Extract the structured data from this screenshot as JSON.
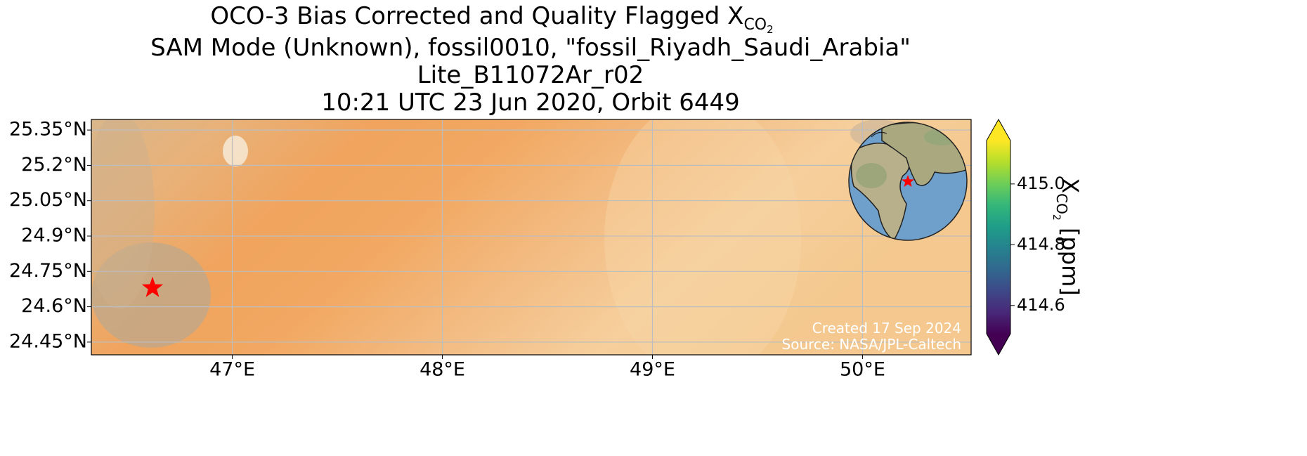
{
  "title": {
    "line1": "OCO-3 Bias Corrected and Quality Flagged X",
    "line1_sub": "CO",
    "line1_sub2": "2",
    "line2": "SAM Mode (Unknown), fossil0010, \"fossil_Riyadh_Saudi_Arabia\"",
    "line3": "Lite_B11072Ar_r02",
    "line4": "10:21 UTC 23 Jun 2020, Orbit 6449"
  },
  "map": {
    "xlim": [
      46.329,
      50.517
    ],
    "ylim": [
      24.396,
      25.395
    ],
    "xticks": [
      {
        "value": 47,
        "label": "47°E"
      },
      {
        "value": 48,
        "label": "48°E"
      },
      {
        "value": 49,
        "label": "49°E"
      },
      {
        "value": 50,
        "label": "50°E"
      }
    ],
    "yticks": [
      {
        "value": 25.35,
        "label": "25.35°N"
      },
      {
        "value": 25.2,
        "label": "25.2°N"
      },
      {
        "value": 25.05,
        "label": "25.05°N"
      },
      {
        "value": 24.9,
        "label": "24.9°N"
      },
      {
        "value": 24.75,
        "label": "24.75°N"
      },
      {
        "value": 24.6,
        "label": "24.6°N"
      },
      {
        "value": 24.45,
        "label": "24.45°N"
      }
    ],
    "grid": true,
    "site": {
      "lon": 46.62,
      "lat": 24.68,
      "color": "#ff0000"
    }
  },
  "colorbar": {
    "lim": [
      414.507,
      415.143
    ],
    "colormap": "viridis",
    "ticks": [
      {
        "value": 415.0,
        "label": "415.0"
      },
      414.8,
      414.6
    ],
    "label": "X",
    "label_sub": "CO",
    "label_sub2": "2",
    "label_unit": " [ppm]"
  },
  "credits": [
    "Created 17 Sep 2024",
    "Source: NASA/JPL-Caltech"
  ]
}
